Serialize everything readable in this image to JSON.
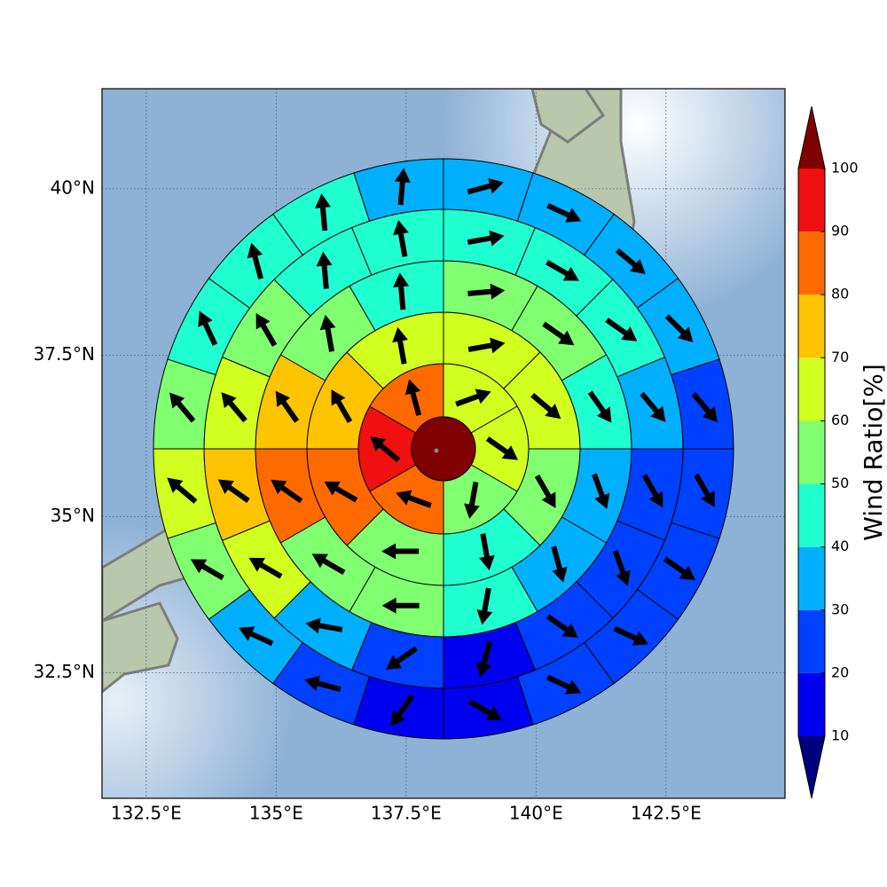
{
  "chart_data": {
    "type": "sectormap",
    "xlim": [
      131.65,
      144.79
    ],
    "ylim": [
      30.44,
      41.46
    ],
    "xticks": [
      {
        "value": 132.5,
        "label": "132.5°E"
      },
      {
        "value": 135,
        "label": "135°E"
      },
      {
        "value": 137.5,
        "label": "137.5°E"
      },
      {
        "value": 140,
        "label": "140°E"
      },
      {
        "value": 142.5,
        "label": "142.5°E"
      }
    ],
    "yticks": [
      {
        "value": 32.5,
        "label": "32.5°N"
      },
      {
        "value": 35,
        "label": "35°N"
      },
      {
        "value": 37.5,
        "label": "37.5°N"
      },
      {
        "value": 40,
        "label": "40°N"
      }
    ],
    "grid": true,
    "center_value": 105,
    "rings": [
      {
        "values": [
          65,
          65,
          55,
          85,
          95,
          85
        ],
        "directions": [
          70,
          125,
          190,
          290,
          310,
          345
        ]
      },
      {
        "values": [
          65,
          65,
          55,
          45,
          55,
          85,
          75,
          65
        ],
        "directions": [
          80,
          130,
          150,
          170,
          270,
          300,
          330,
          350
        ]
      },
      {
        "values": [
          55,
          55,
          45,
          35,
          35,
          45,
          55,
          55,
          85,
          75,
          55,
          45
        ],
        "directions": [
          85,
          125,
          145,
          160,
          165,
          190,
          270,
          300,
          305,
          325,
          350,
          355
        ]
      },
      {
        "values": [
          45,
          45,
          45,
          35,
          25,
          25,
          25,
          15,
          25,
          35,
          65,
          75,
          65,
          55,
          45,
          45
        ],
        "directions": [
          80,
          120,
          125,
          140,
          150,
          160,
          125,
          195,
          235,
          280,
          300,
          305,
          320,
          330,
          355,
          350
        ]
      },
      {
        "values": [
          35,
          35,
          35,
          35,
          25,
          25,
          25,
          25,
          25,
          15,
          15,
          25,
          35,
          55,
          65,
          55,
          45,
          45,
          45,
          35
        ],
        "directions": [
          75,
          115,
          130,
          135,
          140,
          150,
          125,
          115,
          115,
          120,
          215,
          285,
          295,
          300,
          310,
          320,
          335,
          345,
          355,
          5
        ]
      }
    ],
    "colorbar": {
      "label": "Wind Ratio[%]",
      "ticks": [
        10,
        20,
        30,
        40,
        50,
        60,
        70,
        80,
        90,
        100
      ],
      "colors": [
        "#0000f0",
        "#0040ff",
        "#00b0ff",
        "#20ffd0",
        "#80ff70",
        "#d0ff20",
        "#ffc400",
        "#ff6a00",
        "#f01010"
      ],
      "extend_colors": [
        "#00007f",
        "#7f0000"
      ]
    }
  }
}
